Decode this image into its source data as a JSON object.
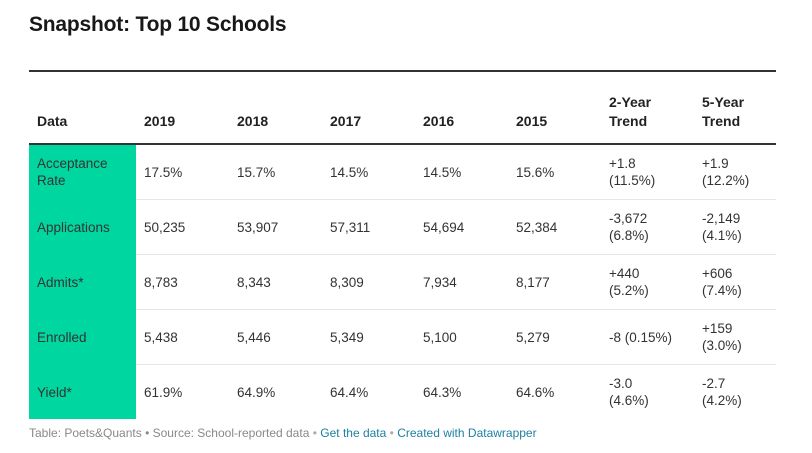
{
  "chart_data": {
    "type": "table",
    "title": "Snapshot: Top 10 Schools",
    "columns": [
      "Data",
      "2019",
      "2018",
      "2017",
      "2016",
      "2015",
      "2-Year\nTrend",
      "5-Year\nTrend"
    ],
    "rows": [
      [
        "Acceptance\nRate",
        "17.5%",
        "15.7%",
        "14.5%",
        "14.5%",
        "15.6%",
        "+1.8\n(11.5%)",
        "+1.9\n(12.2%)"
      ],
      [
        "Applications",
        "50,235",
        "53,907",
        "57,311",
        "54,694",
        "52,384",
        "-3,672\n(6.8%)",
        "-2,149\n(4.1%)"
      ],
      [
        "Admits*",
        "8,783",
        "8,343",
        "8,309",
        "7,934",
        "8,177",
        "+440\n(5.2%)",
        "+606\n(7.4%)"
      ],
      [
        "Enrolled",
        "5,438",
        "5,446",
        "5,349",
        "5,100",
        "5,279",
        "-8 (0.15%)",
        "+159\n(3.0%)"
      ],
      [
        "Yield*",
        "61.9%",
        "64.9%",
        "64.4%",
        "64.3%",
        "64.6%",
        "-3.0\n(4.6%)",
        "-2.7\n(4.2%)"
      ]
    ],
    "label_column_color": "#00d6a0"
  },
  "footer": {
    "source_text": "Table: Poets&Quants • Source: School-reported data",
    "separator": "•",
    "get_data_link": "Get the data",
    "created_with_link": "Created with Datawrapper"
  }
}
